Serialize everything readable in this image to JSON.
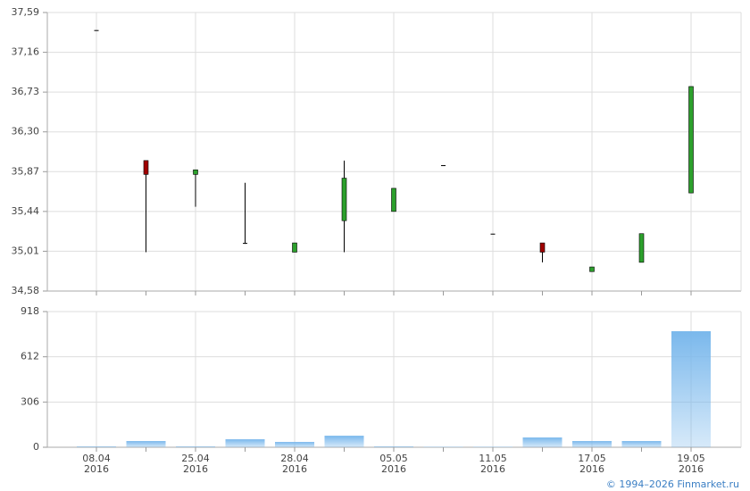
{
  "chart_data": [
    {
      "type": "candlestick",
      "open": [
        37.4,
        35.99,
        35.84,
        35.1,
        35.0,
        35.34,
        35.44,
        35.94,
        35.2,
        35.1,
        34.79,
        34.89,
        35.64
      ],
      "high": [
        37.4,
        35.99,
        35.89,
        35.75,
        35.1,
        35.99,
        35.69,
        35.94,
        35.2,
        35.1,
        34.84,
        35.2,
        36.79
      ],
      "low": [
        37.4,
        35.0,
        35.49,
        35.09,
        35.0,
        35.0,
        35.44,
        35.94,
        35.2,
        34.89,
        34.79,
        34.89,
        35.64
      ],
      "close": [
        37.4,
        35.84,
        35.89,
        35.1,
        35.1,
        35.8,
        35.69,
        35.94,
        35.2,
        35.0,
        34.84,
        35.2,
        36.79
      ],
      "up_color": "#2ca02c",
      "down_color": "#a00000",
      "wick_color": "#000000",
      "ylim": [
        34.58,
        37.59
      ],
      "yticks": [
        {
          "value": 34.58,
          "label": "34,58"
        },
        {
          "value": 35.01,
          "label": "35,01"
        },
        {
          "value": 35.44,
          "label": "35,44"
        },
        {
          "value": 35.87,
          "label": "35,87"
        },
        {
          "value": 36.3,
          "label": "36,30"
        },
        {
          "value": 36.73,
          "label": "36,73"
        },
        {
          "value": 37.16,
          "label": "37,16"
        },
        {
          "value": 37.59,
          "label": "37,59"
        }
      ],
      "grid": true
    },
    {
      "type": "bar",
      "categories": [
        [
          "08.04",
          "2016"
        ],
        null,
        [
          "25.04",
          "2016"
        ],
        null,
        [
          "28.04",
          "2016"
        ],
        null,
        [
          "05.05",
          "2016"
        ],
        null,
        [
          "11.05",
          "2016"
        ],
        null,
        [
          "17.05",
          "2016"
        ],
        null,
        [
          "19.05",
          "2016"
        ]
      ],
      "values": [
        5,
        42,
        5,
        54,
        36,
        78,
        5,
        3,
        3,
        66,
        42,
        42,
        785
      ],
      "color": "#7ab8ec",
      "ylim": [
        0,
        918
      ],
      "yticks": [
        0,
        306,
        612,
        918
      ],
      "grid": true
    }
  ],
  "footer": "© 1994–2026 Finmarket.ru"
}
